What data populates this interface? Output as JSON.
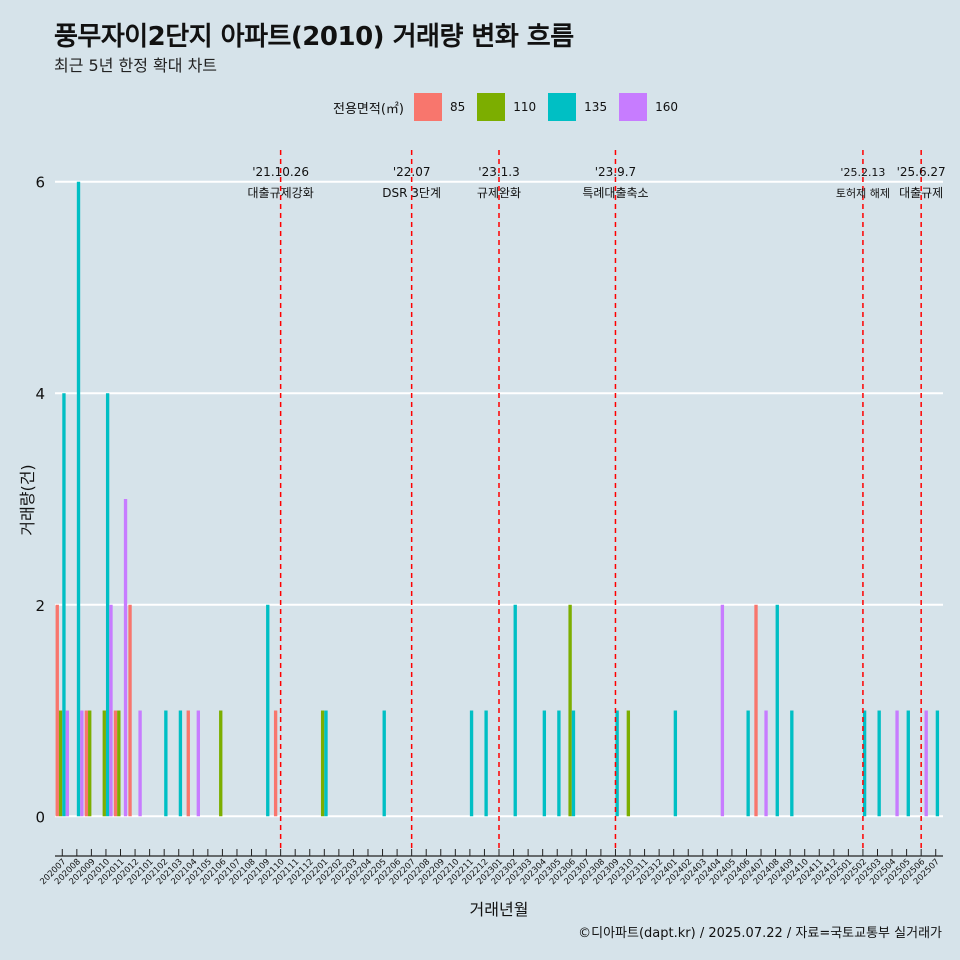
{
  "header": {
    "title": "풍무자이2단지 아파트(2010) 거래량 변화 흐름",
    "subtitle": "최근 5년 한정 확대 차트"
  },
  "legend": {
    "title": "전용면적(㎡)",
    "items": [
      {
        "label": "85",
        "color": "#f8766d"
      },
      {
        "label": "110",
        "color": "#7cae00"
      },
      {
        "label": "135",
        "color": "#00bfc4"
      },
      {
        "label": "160",
        "color": "#c77cff"
      }
    ]
  },
  "caption": "©디아파트(dapt.kr) / 2025.07.22 / 자료=국토교통부 실거래가",
  "chart_data": {
    "type": "bar",
    "title": "풍무자이2단지 아파트(2010) 거래량 변화 흐름",
    "xlabel": "거래년월",
    "ylabel": "거래량(건)",
    "ylim": [
      -0.3,
      6.3
    ],
    "yticks": [
      0,
      2,
      4,
      6
    ],
    "grid": true,
    "categories": [
      "202007",
      "202008",
      "202009",
      "202010",
      "202011",
      "202012",
      "202101",
      "202102",
      "202103",
      "202104",
      "202105",
      "202106",
      "202107",
      "202108",
      "202109",
      "202110",
      "202111",
      "202112",
      "202201",
      "202202",
      "202203",
      "202204",
      "202205",
      "202206",
      "202207",
      "202208",
      "202209",
      "202210",
      "202211",
      "202212",
      "202301",
      "202302",
      "202303",
      "202304",
      "202305",
      "202306",
      "202307",
      "202308",
      "202309",
      "202310",
      "202311",
      "202312",
      "202401",
      "202402",
      "202403",
      "202404",
      "202405",
      "202406",
      "202407",
      "202408",
      "202409",
      "202410",
      "202411",
      "202412",
      "202501",
      "202502",
      "202503",
      "202504",
      "202505",
      "202506",
      "202507"
    ],
    "series": [
      {
        "name": "85",
        "color": "#f8766d",
        "values": [
          2,
          0,
          1,
          0,
          1,
          2,
          0,
          0,
          0,
          1,
          0,
          0,
          0,
          0,
          0,
          1,
          0,
          0,
          0,
          0,
          0,
          0,
          0,
          0,
          0,
          0,
          0,
          0,
          0,
          0,
          0,
          0,
          0,
          0,
          0,
          0,
          0,
          0,
          0,
          0,
          0,
          0,
          0,
          0,
          0,
          0,
          0,
          0,
          2,
          0,
          0,
          0,
          0,
          0,
          0,
          0,
          0,
          0,
          0,
          0,
          0
        ]
      },
      {
        "name": "110",
        "color": "#7cae00",
        "values": [
          1,
          0,
          1,
          1,
          1,
          0,
          0,
          0,
          0,
          0,
          0,
          1,
          0,
          0,
          0,
          0,
          0,
          0,
          1,
          0,
          0,
          0,
          0,
          0,
          0,
          0,
          0,
          0,
          0,
          0,
          0,
          0,
          0,
          0,
          0,
          2,
          0,
          0,
          0,
          1,
          0,
          0,
          0,
          0,
          0,
          0,
          0,
          0,
          0,
          0,
          0,
          0,
          0,
          0,
          0,
          0,
          0,
          0,
          0,
          0,
          0
        ]
      },
      {
        "name": "135",
        "color": "#00bfc4",
        "values": [
          4,
          6,
          0,
          4,
          0,
          0,
          0,
          1,
          1,
          0,
          0,
          0,
          0,
          0,
          2,
          0,
          0,
          0,
          1,
          0,
          0,
          0,
          1,
          0,
          0,
          0,
          0,
          0,
          1,
          1,
          0,
          2,
          0,
          1,
          1,
          1,
          0,
          0,
          1,
          0,
          0,
          0,
          1,
          0,
          0,
          0,
          0,
          1,
          0,
          2,
          1,
          0,
          0,
          0,
          0,
          1,
          1,
          0,
          1,
          0,
          1
        ]
      },
      {
        "name": "160",
        "color": "#c77cff",
        "values": [
          1,
          1,
          0,
          2,
          3,
          1,
          0,
          0,
          0,
          1,
          0,
          0,
          0,
          0,
          0,
          0,
          0,
          0,
          0,
          0,
          0,
          0,
          0,
          0,
          0,
          0,
          0,
          0,
          0,
          0,
          0,
          0,
          0,
          0,
          0,
          0,
          0,
          0,
          0,
          0,
          0,
          0,
          0,
          0,
          0,
          2,
          0,
          0,
          1,
          0,
          0,
          0,
          0,
          0,
          0,
          0,
          0,
          1,
          0,
          1,
          0
        ]
      }
    ],
    "events": [
      {
        "date": "'21.10.26",
        "label": "대출규제강화",
        "month": "202110"
      },
      {
        "date": "'22.07",
        "label": "DSR 3단계",
        "month": "202207"
      },
      {
        "date": "'23.1.3",
        "label": "규제완화",
        "month": "202301"
      },
      {
        "date": "'23.9.7",
        "label": "특례대출축소",
        "month": "202309"
      },
      {
        "date": "'25.2.13",
        "label": "토허제 해제",
        "month": "202502"
      },
      {
        "date": "'25.6.27",
        "label": "대출규제",
        "month": "202506"
      }
    ]
  }
}
